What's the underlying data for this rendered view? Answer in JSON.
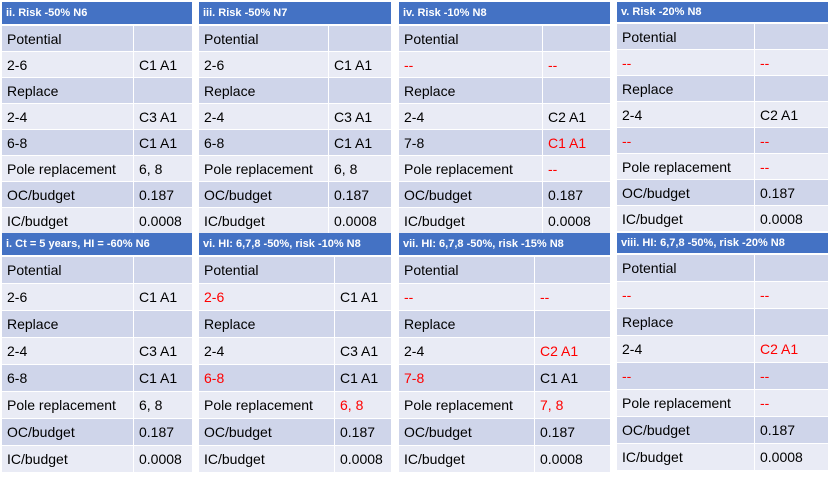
{
  "panels": [
    {
      "id": "p1",
      "title": "ii. Risk -50% N6",
      "rows": [
        {
          "a": "Potential",
          "b": "",
          "ar": false,
          "br": false
        },
        {
          "a": "2-6",
          "b": "C1 A1",
          "ar": false,
          "br": false
        },
        {
          "a": "Replace",
          "b": "",
          "ar": false,
          "br": false
        },
        {
          "a": "2-4",
          "b": "C3 A1",
          "ar": false,
          "br": false
        },
        {
          "a": "6-8",
          "b": "C1 A1",
          "ar": false,
          "br": false
        },
        {
          "a": "Pole replacement",
          "b": "6, 8",
          "ar": false,
          "br": false
        },
        {
          "a": "OC/budget",
          "b": "0.187",
          "ar": false,
          "br": false
        },
        {
          "a": "IC/budget",
          "b": "0.0008",
          "ar": false,
          "br": false
        }
      ]
    },
    {
      "id": "p2",
      "title": "iii. Risk -50% N7",
      "rows": [
        {
          "a": "Potential",
          "b": "",
          "ar": false,
          "br": false
        },
        {
          "a": "2-6",
          "b": "C1 A1",
          "ar": false,
          "br": false
        },
        {
          "a": "Replace",
          "b": "",
          "ar": false,
          "br": false
        },
        {
          "a": "2-4",
          "b": "C3 A1",
          "ar": false,
          "br": false
        },
        {
          "a": "6-8",
          "b": "C1 A1",
          "ar": false,
          "br": false
        },
        {
          "a": "Pole replacement",
          "b": "6, 8",
          "ar": false,
          "br": false
        },
        {
          "a": "OC/budget",
          "b": "0.187",
          "ar": false,
          "br": false
        },
        {
          "a": "IC/budget",
          "b": "0.0008",
          "ar": false,
          "br": false
        }
      ]
    },
    {
      "id": "p3",
      "title": "iv. Risk -10% N8",
      "rows": [
        {
          "a": "Potential",
          "b": "",
          "ar": false,
          "br": false
        },
        {
          "a": "--",
          "b": "--",
          "ar": true,
          "br": true
        },
        {
          "a": "Replace",
          "b": "",
          "ar": false,
          "br": false
        },
        {
          "a": "2-4",
          "b": "C2 A1",
          "ar": false,
          "br": false
        },
        {
          "a": "7-8",
          "b": "C1 A1",
          "ar": false,
          "br": true
        },
        {
          "a": "Pole replacement",
          "b": "--",
          "ar": false,
          "br": true
        },
        {
          "a": "OC/budget",
          "b": "0.187",
          "ar": false,
          "br": false
        },
        {
          "a": "IC/budget",
          "b": "0.0008",
          "ar": false,
          "br": false
        }
      ]
    },
    {
      "id": "p4",
      "title": "v. Risk -20% N8",
      "rows": [
        {
          "a": "Potential",
          "b": "",
          "ar": false,
          "br": false
        },
        {
          "a": "--",
          "b": "--",
          "ar": true,
          "br": true
        },
        {
          "a": "Replace",
          "b": "",
          "ar": false,
          "br": false
        },
        {
          "a": "2-4",
          "b": "C2 A1",
          "ar": false,
          "br": false
        },
        {
          "a": "--",
          "b": "--",
          "ar": true,
          "br": true
        },
        {
          "a": "Pole replacement",
          "b": "--",
          "ar": false,
          "br": true
        },
        {
          "a": "OC/budget",
          "b": "0.187",
          "ar": false,
          "br": false
        },
        {
          "a": "IC/budget",
          "b": "0.0008",
          "ar": false,
          "br": false
        }
      ]
    },
    {
      "id": "p5",
      "title": "i. Ct = 5 years, HI = -60% N6",
      "rows": [
        {
          "a": "Potential",
          "b": "",
          "ar": false,
          "br": false
        },
        {
          "a": "2-6",
          "b": "C1 A1",
          "ar": false,
          "br": false
        },
        {
          "a": "Replace",
          "b": "",
          "ar": false,
          "br": false
        },
        {
          "a": "2-4",
          "b": "C3 A1",
          "ar": false,
          "br": false
        },
        {
          "a": "6-8",
          "b": "C1 A1",
          "ar": false,
          "br": false
        },
        {
          "a": "Pole replacement",
          "b": "6, 8",
          "ar": false,
          "br": false
        },
        {
          "a": "OC/budget",
          "b": "0.187",
          "ar": false,
          "br": false
        },
        {
          "a": "IC/budget",
          "b": "0.0008",
          "ar": false,
          "br": false
        }
      ]
    },
    {
      "id": "p6",
      "title": "vi. HI: 6,7,8 -50%, risk -10%  N8",
      "rows": [
        {
          "a": "Potential",
          "b": "",
          "ar": false,
          "br": false
        },
        {
          "a": "2-6",
          "b": "C1 A1",
          "ar": true,
          "br": false
        },
        {
          "a": "Replace",
          "b": "",
          "ar": false,
          "br": false
        },
        {
          "a": "2-4",
          "b": "C3 A1",
          "ar": false,
          "br": false
        },
        {
          "a": "6-8",
          "b": "C1 A1",
          "ar": true,
          "br": false
        },
        {
          "a": "Pole replacement",
          "b": "6, 8",
          "ar": false,
          "br": true
        },
        {
          "a": "OC/budget",
          "b": "0.187",
          "ar": false,
          "br": false
        },
        {
          "a": "IC/budget",
          "b": "0.0008",
          "ar": false,
          "br": false
        }
      ]
    },
    {
      "id": "p7",
      "title": "vii. HI: 6,7,8 -50%, risk -15%  N8",
      "rows": [
        {
          "a": "Potential",
          "b": "",
          "ar": false,
          "br": false
        },
        {
          "a": "--",
          "b": "--",
          "ar": true,
          "br": true
        },
        {
          "a": "Replace",
          "b": "",
          "ar": false,
          "br": false
        },
        {
          "a": "2-4",
          "b": "C2 A1",
          "ar": false,
          "br": true
        },
        {
          "a": "7-8",
          "b": "C1 A1",
          "ar": true,
          "br": false
        },
        {
          "a": "Pole replacement",
          "b": "7, 8",
          "ar": false,
          "br": true
        },
        {
          "a": "OC/budget",
          "b": "0.187",
          "ar": false,
          "br": false
        },
        {
          "a": "IC/budget",
          "b": "0.0008",
          "ar": false,
          "br": false
        }
      ]
    },
    {
      "id": "p8",
      "title": "viii. HI: 6,7,8 -50%, risk -20%  N8",
      "rows": [
        {
          "a": "Potential",
          "b": "",
          "ar": false,
          "br": false
        },
        {
          "a": "--",
          "b": "--",
          "ar": true,
          "br": true
        },
        {
          "a": "Replace",
          "b": "",
          "ar": false,
          "br": false
        },
        {
          "a": "2-4",
          "b": "C2 A1",
          "ar": false,
          "br": true
        },
        {
          "a": "--",
          "b": "--",
          "ar": true,
          "br": true
        },
        {
          "a": "Pole replacement",
          "b": "--",
          "ar": false,
          "br": true
        },
        {
          "a": "OC/budget",
          "b": "0.187",
          "ar": false,
          "br": false
        },
        {
          "a": "IC/budget",
          "b": "0.0008",
          "ar": false,
          "br": false
        }
      ]
    }
  ],
  "colors": {
    "header": "#4472c4",
    "row_dark": "#cfd5ea",
    "row_light": "#e9ebf5",
    "highlight": "#ff0000"
  }
}
